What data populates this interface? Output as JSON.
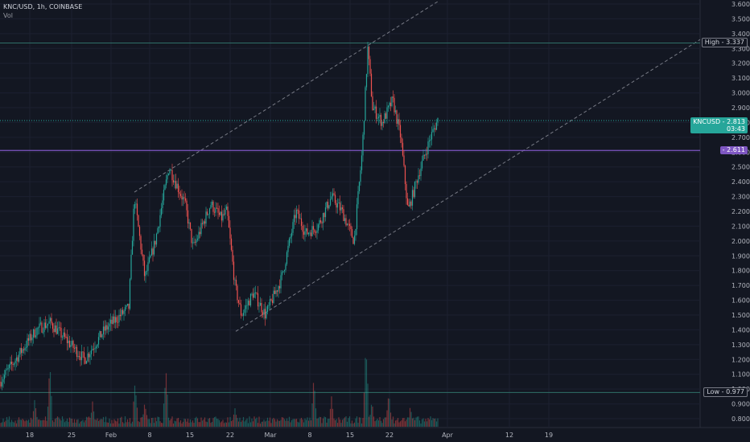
{
  "header": {
    "symbol_line": "KNC/USD, 1h, COINBASE",
    "indicator": "Vol"
  },
  "price_tags": {
    "high_label": "High",
    "high_value": "3.337",
    "low_label": "Low",
    "low_value": "0.977",
    "symbol_label": "KNCUSD",
    "symbol_value": "2.813",
    "countdown": "03:43",
    "hline_value": "2.611"
  },
  "colors": {
    "up": "#26a69a",
    "down": "#ef5350",
    "hline": "#7e57c2",
    "background": "#131722"
  },
  "chart_data": {
    "type": "candlestick",
    "y_axis_ticks": [
      "0.800",
      "0.900",
      "1.000",
      "1.100",
      "1.200",
      "1.300",
      "1.400",
      "1.500",
      "1.600",
      "1.700",
      "1.800",
      "1.900",
      "2.000",
      "2.100",
      "2.200",
      "2.300",
      "2.400",
      "2.500",
      "2.600",
      "2.700",
      "2.800",
      "2.900",
      "3.000",
      "3.100",
      "3.200",
      "3.300",
      "3.400",
      "3.500",
      "3.600"
    ],
    "x_axis_ticks": [
      "18",
      "25",
      "Feb",
      "8",
      "15",
      "22",
      "Mar",
      "8",
      "15",
      "22",
      "Apr",
      "12",
      "19"
    ],
    "ylim": [
      0.74,
      3.62
    ],
    "key_points": [
      {
        "x": 0,
        "y": 1.05
      },
      {
        "x": 45,
        "y": 1.4
      },
      {
        "x": 62,
        "y": 1.45
      },
      {
        "x": 105,
        "y": 1.2
      },
      {
        "x": 130,
        "y": 1.4
      },
      {
        "x": 160,
        "y": 1.55
      },
      {
        "x": 167,
        "y": 2.3
      },
      {
        "x": 180,
        "y": 1.75
      },
      {
        "x": 193,
        "y": 2.0
      },
      {
        "x": 210,
        "y": 2.5
      },
      {
        "x": 230,
        "y": 2.25
      },
      {
        "x": 240,
        "y": 1.95
      },
      {
        "x": 262,
        "y": 2.25
      },
      {
        "x": 275,
        "y": 2.15
      },
      {
        "x": 282,
        "y": 2.2
      },
      {
        "x": 292,
        "y": 1.7
      },
      {
        "x": 300,
        "y": 1.5
      },
      {
        "x": 315,
        "y": 1.65
      },
      {
        "x": 330,
        "y": 1.5
      },
      {
        "x": 350,
        "y": 1.75
      },
      {
        "x": 368,
        "y": 2.2
      },
      {
        "x": 380,
        "y": 2.05
      },
      {
        "x": 395,
        "y": 2.1
      },
      {
        "x": 412,
        "y": 2.3
      },
      {
        "x": 425,
        "y": 2.2
      },
      {
        "x": 440,
        "y": 2.0
      },
      {
        "x": 450,
        "y": 2.6
      },
      {
        "x": 457,
        "y": 3.3
      },
      {
        "x": 463,
        "y": 2.9
      },
      {
        "x": 475,
        "y": 2.8
      },
      {
        "x": 488,
        "y": 2.95
      },
      {
        "x": 498,
        "y": 2.7
      },
      {
        "x": 507,
        "y": 2.2
      },
      {
        "x": 520,
        "y": 2.45
      },
      {
        "x": 535,
        "y": 2.7
      },
      {
        "x": 545,
        "y": 2.83
      }
    ],
    "volume_spikes": [
      {
        "x": 43,
        "level": 0.3
      },
      {
        "x": 62,
        "level": 0.62
      },
      {
        "x": 115,
        "level": 0.25
      },
      {
        "x": 168,
        "level": 0.5
      },
      {
        "x": 180,
        "level": 0.3
      },
      {
        "x": 206,
        "level": 0.62
      },
      {
        "x": 292,
        "level": 0.22
      },
      {
        "x": 390,
        "level": 0.55
      },
      {
        "x": 412,
        "level": 0.32
      },
      {
        "x": 455,
        "level": 0.92
      },
      {
        "x": 462,
        "level": 0.28
      },
      {
        "x": 483,
        "level": 0.4
      },
      {
        "x": 510,
        "level": 0.25
      }
    ],
    "high": 3.337,
    "low": 0.977,
    "last": 2.813,
    "hline": 2.611
  }
}
